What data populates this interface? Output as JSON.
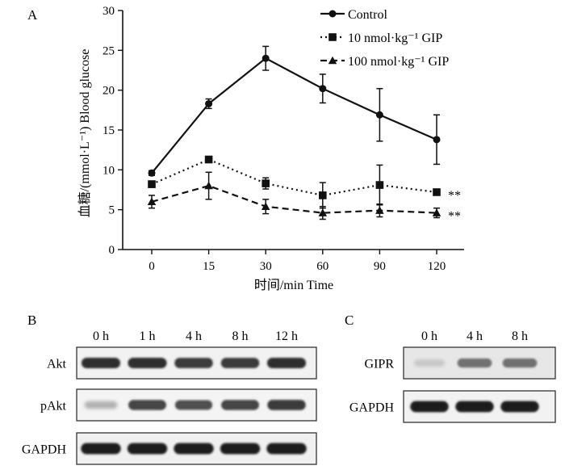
{
  "panels": {
    "a": "A",
    "b": "B",
    "c": "C"
  },
  "chart_data": {
    "type": "line",
    "title": "",
    "xlabel": "时间/min Time",
    "ylabel": "血糖/(mmol·L⁻¹) Blood glucose",
    "categories": [
      "0",
      "15",
      "30",
      "60",
      "90",
      "120"
    ],
    "ylim": [
      0,
      30
    ],
    "yticks": [
      0,
      5,
      10,
      15,
      20,
      25,
      30
    ],
    "grid": false,
    "legend_position": "top-right",
    "series": [
      {
        "name": "Control",
        "marker": "circle",
        "line": "solid",
        "values": [
          9.6,
          18.3,
          24.0,
          20.2,
          16.9,
          13.8
        ],
        "errors": [
          0.3,
          0.6,
          1.5,
          1.8,
          3.3,
          3.1
        ]
      },
      {
        "name": "10 nmol·kg⁻¹ GIP",
        "marker": "square",
        "line": "dotted",
        "values": [
          8.2,
          11.3,
          8.3,
          6.8,
          8.1,
          7.2
        ],
        "errors": [
          0.4,
          0.3,
          0.7,
          1.6,
          2.5,
          0.3
        ],
        "annotation": "**"
      },
      {
        "name": "100 nmol·kg⁻¹ GIP",
        "marker": "triangle",
        "line": "dashed",
        "values": [
          6.0,
          8.0,
          5.4,
          4.6,
          4.9,
          4.6
        ],
        "errors": [
          0.8,
          1.7,
          0.9,
          0.8,
          0.8,
          0.6
        ],
        "annotation": "**"
      }
    ]
  },
  "blot_b": {
    "lanes": [
      "0 h",
      "1 h",
      "4 h",
      "8 h",
      "12 h"
    ],
    "rows": [
      "Akt",
      "pAkt",
      "GAPDH"
    ],
    "intensity": [
      [
        0.85,
        0.85,
        0.8,
        0.8,
        0.85
      ],
      [
        0.25,
        0.75,
        0.7,
        0.75,
        0.8
      ],
      [
        0.95,
        0.95,
        0.95,
        0.95,
        0.95
      ]
    ]
  },
  "blot_c": {
    "lanes": [
      "0 h",
      "4 h",
      "8 h"
    ],
    "rows": [
      "GIPR",
      "GAPDH"
    ],
    "intensity": [
      [
        0.15,
        0.55,
        0.55
      ],
      [
        0.95,
        0.95,
        0.95
      ]
    ]
  }
}
